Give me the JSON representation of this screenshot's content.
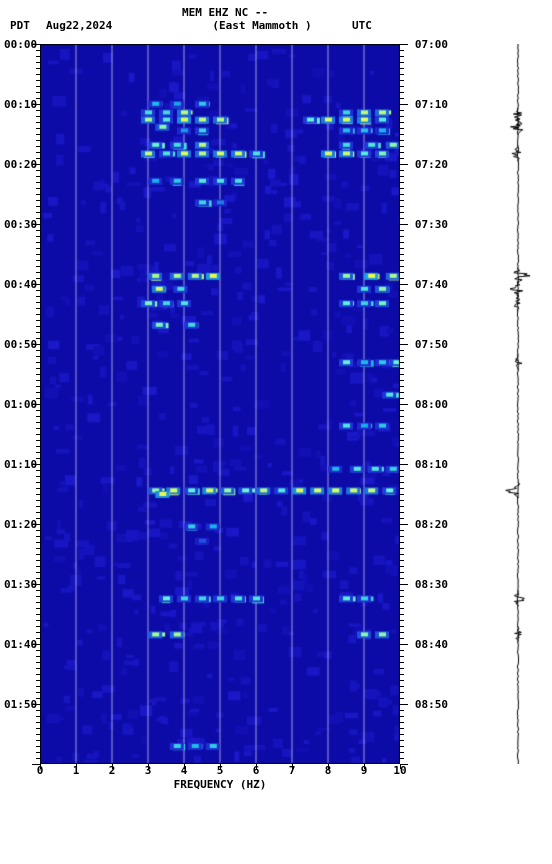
{
  "header": {
    "left_tz": "PDT",
    "date": "Aug22,2024",
    "station": "MEM EHZ NC --",
    "location": "(East Mammoth )",
    "right_tz": "UTC"
  },
  "spectrogram": {
    "type": "heatmap",
    "x_axis": {
      "label": "FREQUENCY (HZ)",
      "min": 0,
      "max": 10,
      "ticks": [
        0,
        1,
        2,
        3,
        4,
        5,
        6,
        7,
        8,
        9,
        10
      ]
    },
    "y_left": {
      "labels": [
        "00:00",
        "00:10",
        "00:20",
        "00:30",
        "00:40",
        "00:50",
        "01:00",
        "01:10",
        "01:20",
        "01:30",
        "01:40",
        "01:50"
      ],
      "step_minutes": 10
    },
    "y_right": {
      "labels": [
        "07:00",
        "07:10",
        "07:20",
        "07:30",
        "07:40",
        "07:50",
        "08:00",
        "08:10",
        "08:20",
        "08:30",
        "08:40",
        "08:50"
      ],
      "step_minutes": 10
    },
    "background_color": "#0d0ba8",
    "noise_color": "#1a18c8",
    "gridline_color": "#ffffff",
    "colormap": [
      "#0d0ba8",
      "#1a18c8",
      "#1f3ad8",
      "#18b6e8",
      "#5ef4d8",
      "#d8fc60",
      "#fcf830"
    ],
    "events": [
      {
        "t": 0.083,
        "freqs": [
          3.2,
          3.8,
          4.5
        ],
        "int": 0.6
      },
      {
        "t": 0.095,
        "freqs": [
          3.0,
          3.5,
          4.0,
          8.5,
          9.0,
          9.5
        ],
        "int": 0.8
      },
      {
        "t": 0.105,
        "freqs": [
          3.0,
          3.5,
          4.0,
          4.5,
          5.0,
          7.5,
          8.0,
          8.5,
          9.0,
          9.5
        ],
        "int": 0.9
      },
      {
        "t": 0.115,
        "freqs": [
          3.4
        ],
        "int": 1.0
      },
      {
        "t": 0.12,
        "freqs": [
          4.0,
          4.5,
          8.5,
          9.0,
          9.5
        ],
        "int": 0.6
      },
      {
        "t": 0.14,
        "freqs": [
          3.2,
          3.8,
          4.5,
          8.5,
          9.2,
          9.8
        ],
        "int": 0.8
      },
      {
        "t": 0.152,
        "freqs": [
          3.0,
          3.5,
          4.0,
          4.5,
          5.0,
          5.5,
          6.0,
          8.0,
          8.5,
          9.0,
          9.5
        ],
        "int": 0.85
      },
      {
        "t": 0.19,
        "freqs": [
          3.2,
          3.8,
          4.5,
          5.0,
          5.5
        ],
        "int": 0.7
      },
      {
        "t": 0.22,
        "freqs": [
          4.5,
          5.0
        ],
        "int": 0.6
      },
      {
        "t": 0.322,
        "freqs": [
          3.2,
          3.8,
          4.3,
          4.8,
          8.5,
          9.2,
          9.8
        ],
        "int": 0.95
      },
      {
        "t": 0.34,
        "freqs": [
          3.3,
          3.9,
          9.0,
          9.5
        ],
        "int": 0.85
      },
      {
        "t": 0.36,
        "freqs": [
          3.0,
          3.5,
          4.0,
          8.5,
          9.0,
          9.5
        ],
        "int": 0.75
      },
      {
        "t": 0.39,
        "freqs": [
          3.3,
          4.2
        ],
        "int": 0.8
      },
      {
        "t": 0.442,
        "freqs": [
          8.5,
          9.0,
          9.5,
          9.9
        ],
        "int": 0.7
      },
      {
        "t": 0.487,
        "freqs": [
          9.7
        ],
        "int": 0.8
      },
      {
        "t": 0.53,
        "freqs": [
          8.5,
          9.0,
          9.5
        ],
        "int": 0.65
      },
      {
        "t": 0.59,
        "freqs": [
          8.2,
          8.8,
          9.3,
          9.8
        ],
        "int": 0.65
      },
      {
        "t": 0.62,
        "freqs": [
          3.2,
          3.7,
          4.2,
          4.7,
          5.2,
          5.7,
          6.2,
          6.7,
          7.2,
          7.7,
          8.2,
          8.7,
          9.2,
          9.7
        ],
        "int": 0.9
      },
      {
        "t": 0.625,
        "freqs": [
          3.4
        ],
        "int": 1.0
      },
      {
        "t": 0.67,
        "freqs": [
          4.2,
          4.8
        ],
        "int": 0.65
      },
      {
        "t": 0.69,
        "freqs": [
          4.5
        ],
        "int": 0.5
      },
      {
        "t": 0.77,
        "freqs": [
          3.5,
          4.0,
          4.5,
          5.0,
          5.5,
          6.0,
          8.5,
          9.0
        ],
        "int": 0.75
      },
      {
        "t": 0.82,
        "freqs": [
          3.2,
          3.8,
          9.0,
          9.5
        ],
        "int": 0.8
      },
      {
        "t": 0.975,
        "freqs": [
          3.8,
          4.3,
          4.8
        ],
        "int": 0.7
      }
    ],
    "noise_patches": 550,
    "minor_tick_interval_min": 1
  },
  "waveform": {
    "baseline_color": "#000000",
    "baseline_width": 1,
    "events": [
      {
        "t": 0.1,
        "amp": 0.5
      },
      {
        "t": 0.115,
        "amp": 0.7
      },
      {
        "t": 0.152,
        "amp": 0.6
      },
      {
        "t": 0.322,
        "amp": 1.0
      },
      {
        "t": 0.34,
        "amp": 0.7
      },
      {
        "t": 0.36,
        "amp": 0.5
      },
      {
        "t": 0.442,
        "amp": 0.4
      },
      {
        "t": 0.62,
        "amp": 1.0
      },
      {
        "t": 0.77,
        "amp": 0.6
      },
      {
        "t": 0.82,
        "amp": 0.5
      }
    ]
  }
}
